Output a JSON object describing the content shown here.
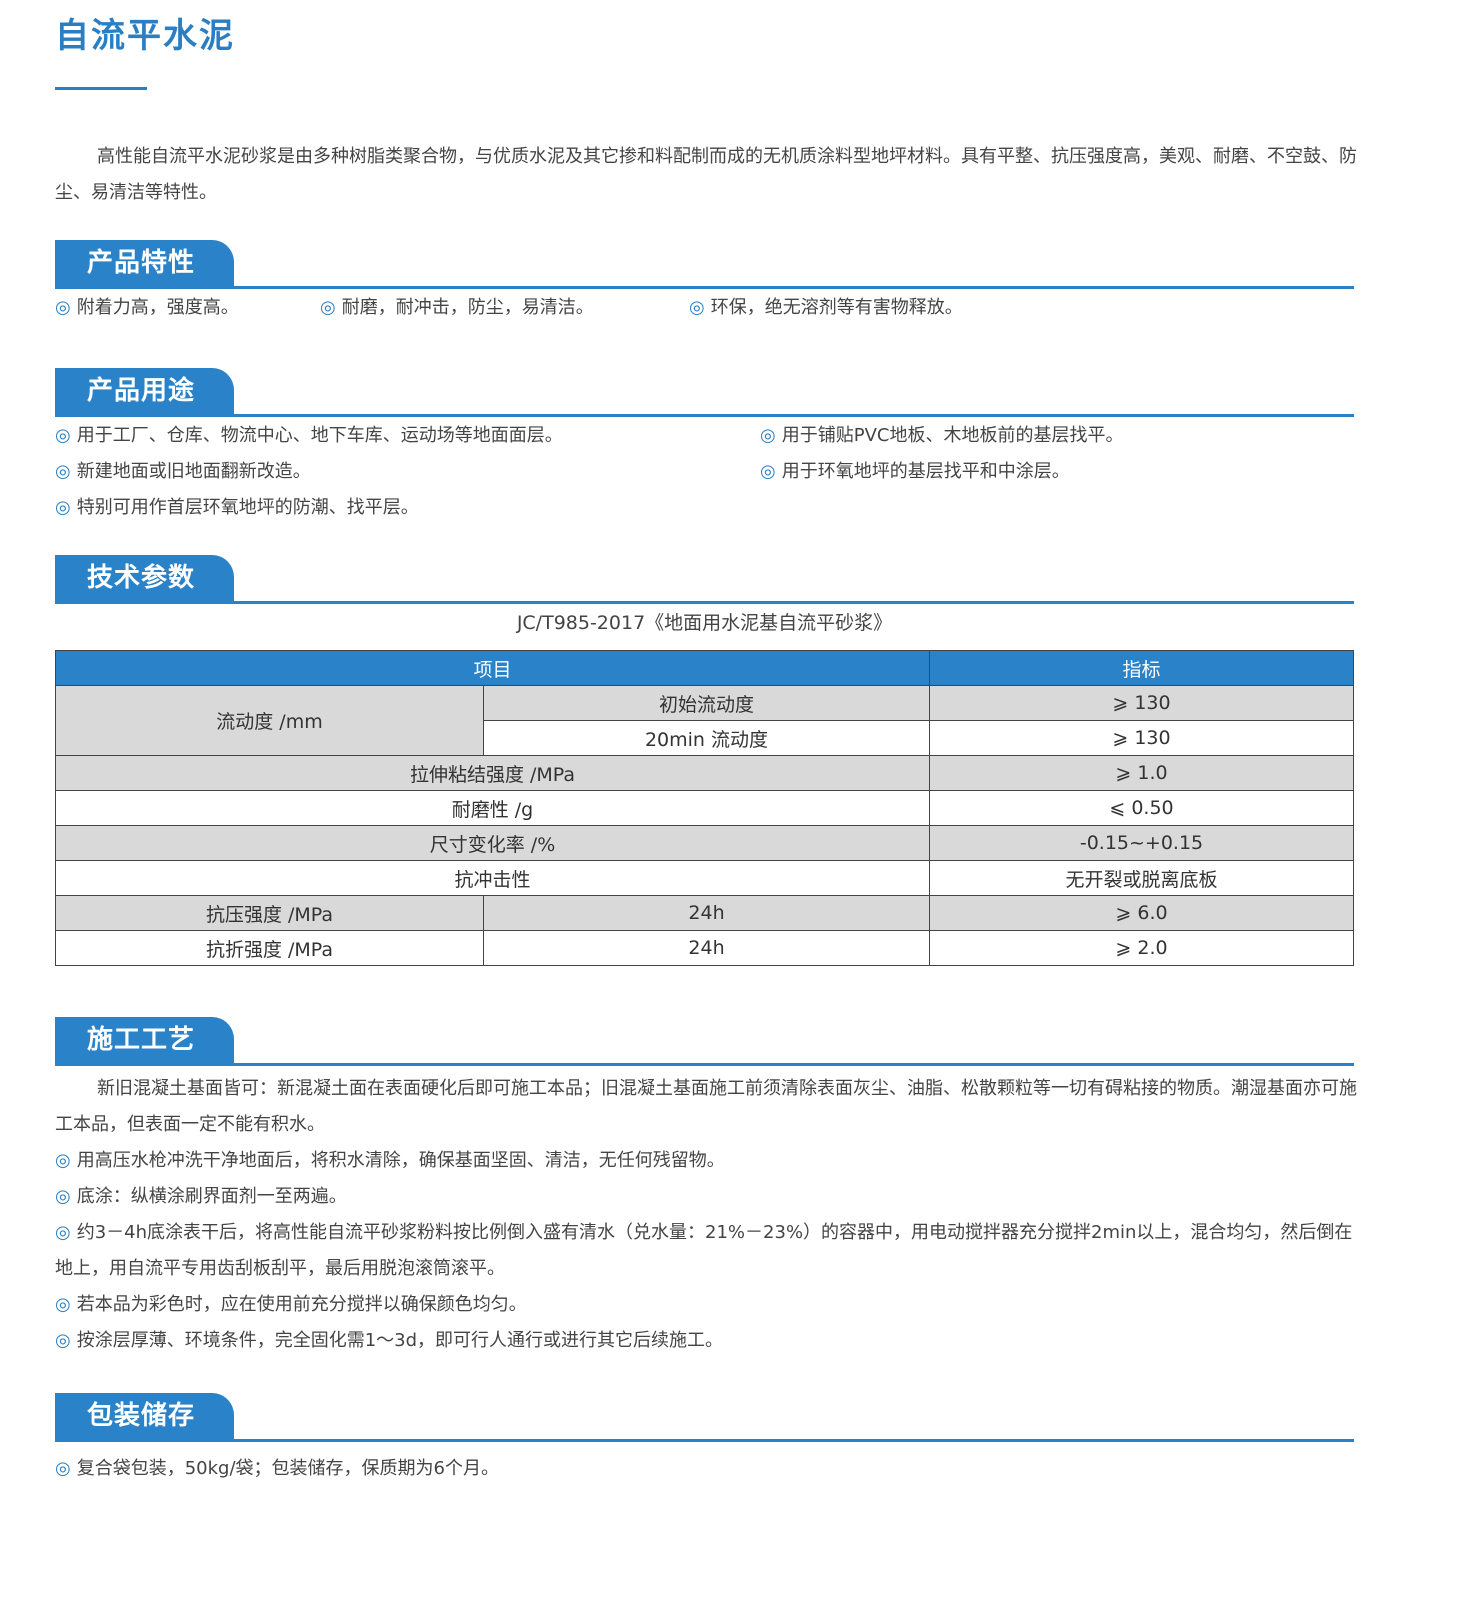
{
  "title": "自流平水泥",
  "intro": "高性能自流平水泥砂浆是由多种树脂类聚合物，与优质水泥及其它掺和料配制而成的无机质涂料型地坪材料。具有平整、抗压强度高，美观、耐磨、不空鼓、防尘、易清洁等特性。",
  "bullet": "◎",
  "colors": {
    "accent": "#2a82c8",
    "row_gray": "#d9d9d9"
  },
  "sections": {
    "features": {
      "title": "产品特性",
      "items": [
        "附着力高，强度高。",
        "耐磨，耐冲击，防尘，易清洁。",
        "环保，绝无溶剂等有害物释放。"
      ]
    },
    "uses": {
      "title": "产品用途",
      "items": [
        "用于工厂、仓库、物流中心、地下车库、运动场等地面面层。",
        "用于铺贴PVC地板、木地板前的基层找平。",
        "新建地面或旧地面翻新改造。",
        "用于环氧地坪的基层找平和中涂层。",
        "特别可用作首层环氧地坪的防潮、找平层。"
      ]
    },
    "tech": {
      "title": "技术参数",
      "standard": "JC/T985-2017《地面用水泥基自流平砂浆》",
      "headers": [
        "项目",
        "指标"
      ],
      "rows": {
        "flow": {
          "label": "流动度 /mm",
          "sub": [
            "初始流动度",
            "20min 流动度"
          ],
          "values": [
            "⩾ 130",
            "⩾ 130"
          ]
        },
        "tensile": {
          "label": "拉伸粘结强度 /MPa",
          "value": "⩾ 1.0"
        },
        "wear": {
          "label": "耐磨性 /g",
          "value": "⩽ 0.50"
        },
        "size": {
          "label": "尺寸变化率 /%",
          "value": "-0.15~+0.15"
        },
        "impact": {
          "label": "抗冲击性",
          "value": "无开裂或脱离底板"
        },
        "compress": {
          "label": "抗压强度 /MPa",
          "sub": "24h",
          "value": "⩾ 6.0"
        },
        "flex": {
          "label": "抗折强度 /MPa",
          "sub": "24h",
          "value": "⩾ 2.0"
        }
      }
    },
    "process": {
      "title": "施工工艺",
      "intro": "新旧混凝土基面皆可：新混凝土面在表面硬化后即可施工本品；旧混凝土基面施工前须清除表面灰尘、油脂、松散颗粒等一切有碍粘接的物质。潮湿基面亦可施工本品，但表面一定不能有积水。",
      "items": [
        "用高压水枪冲洗干净地面后，将积水清除，确保基面坚固、清洁，无任何残留物。",
        "底涂：纵横涂刷界面剂一至两遍。",
        "约3－4h底涂表干后，将高性能自流平砂浆粉料按比例倒入盛有清水（兑水量：21%－23%）的容器中，用电动搅拌器充分搅拌2min以上，混合均匀，然后倒在地上，用自流平专用齿刮板刮平，最后用脱泡滚筒滚平。",
        "若本品为彩色时，应在使用前充分搅拌以确保颜色均匀。",
        "按涂层厚薄、环境条件，完全固化需1～3d，即可行人通行或进行其它后续施工。"
      ]
    },
    "package": {
      "title": "包装储存",
      "items": [
        "复合袋包装，50kg/袋；包装储存，保质期为6个月。"
      ]
    }
  }
}
